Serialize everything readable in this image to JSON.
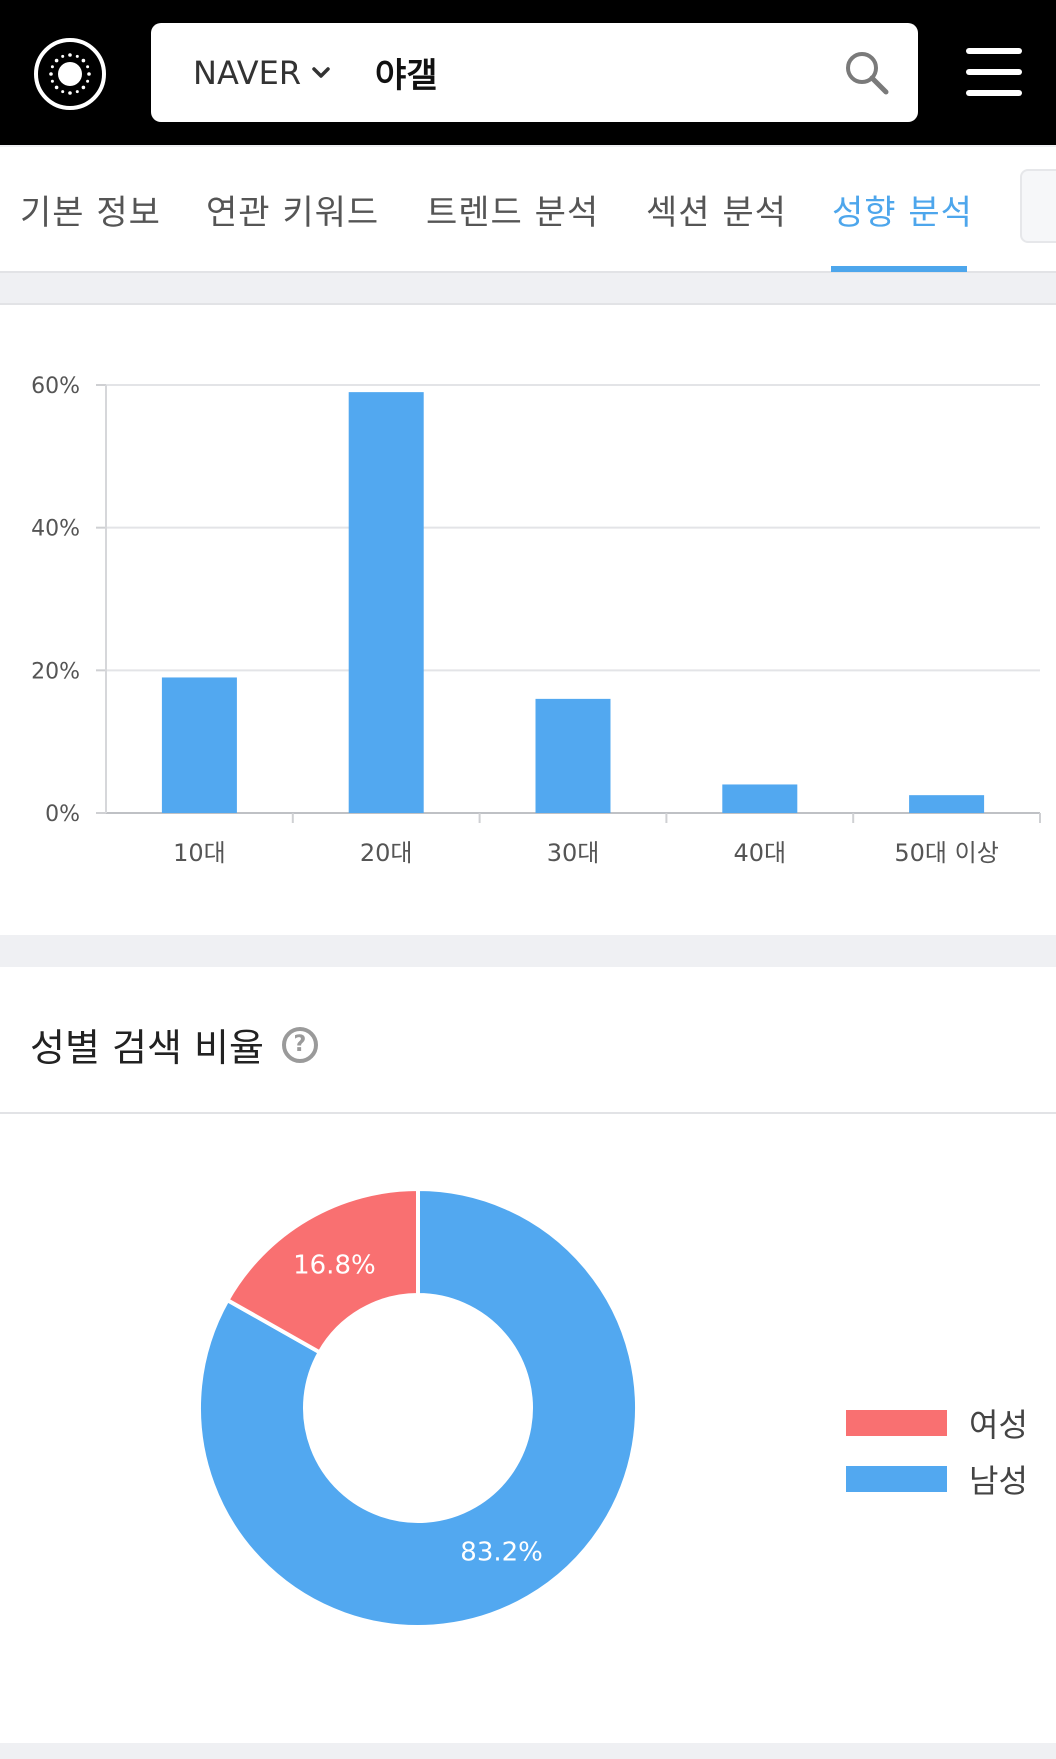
{
  "header": {
    "search_engine": "NAVER",
    "query": "야갤"
  },
  "tabs": [
    {
      "label": "기본 정보",
      "active": false
    },
    {
      "label": "연관 키워드",
      "active": false
    },
    {
      "label": "트렌드 분석",
      "active": false
    },
    {
      "label": "섹션 분석",
      "active": false
    },
    {
      "label": "성향 분석",
      "active": true
    }
  ],
  "age_chart": {
    "chart_data": {
      "type": "bar",
      "categories": [
        "10대",
        "20대",
        "30대",
        "40대",
        "50대 이상"
      ],
      "values": [
        19,
        59,
        16,
        4,
        2.5
      ],
      "y_tick_labels": [
        "0%",
        "20%",
        "40%",
        "60%"
      ],
      "y_ticks": [
        0,
        20,
        40,
        60
      ],
      "ylim": [
        0,
        60
      ],
      "grid": true,
      "bar_color": "#52a8f0"
    }
  },
  "gender_section": {
    "title": "성별 검색 비율",
    "chart_data": {
      "type": "pie",
      "donut": true,
      "slices": [
        {
          "label": "여성",
          "value": 16.8,
          "value_label": "16.8%",
          "color": "#f97071"
        },
        {
          "label": "남성",
          "value": 83.2,
          "value_label": "83.2%",
          "color": "#52a8f0"
        }
      ],
      "legend_position": "right"
    }
  },
  "colors": {
    "accent": "#4da6ec",
    "header_bg": "#000000"
  }
}
